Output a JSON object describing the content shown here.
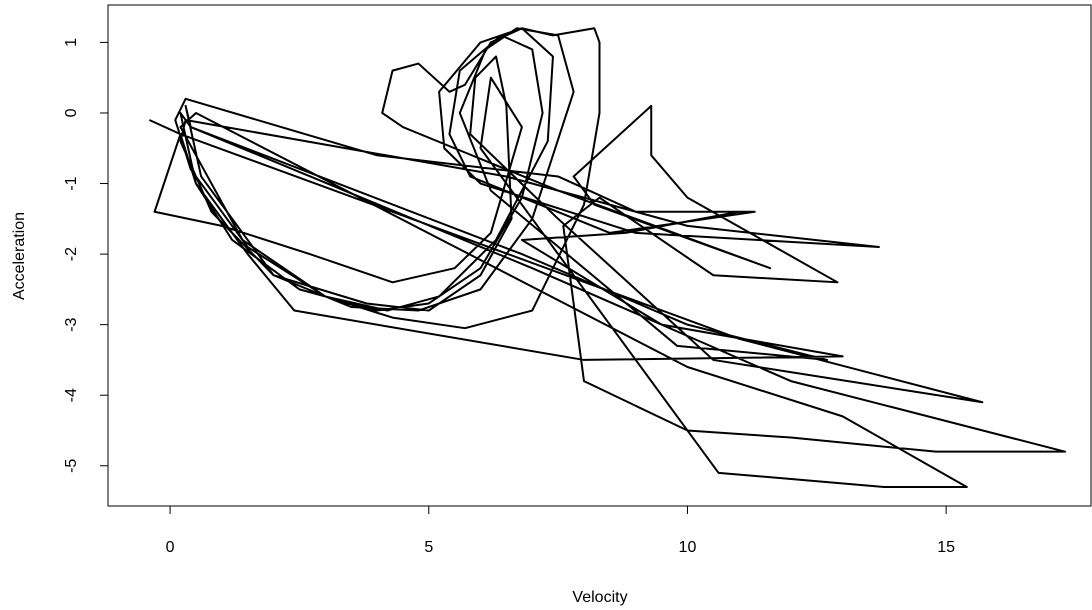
{
  "chart_data": {
    "type": "line",
    "x_label": "Velocity",
    "y_label": "Acceleration",
    "color": "#000000",
    "xlim": [
      -1.2,
      17.8
    ],
    "ylim": [
      -5.57,
      1.53
    ],
    "xticks": [
      0,
      5,
      10,
      15
    ],
    "yticks": [
      -5,
      -4,
      -3,
      -2,
      -1,
      0,
      1
    ],
    "x": [
      -0.4,
      0.2,
      0.5,
      1.2,
      2.5,
      4,
      5,
      6,
      6.8,
      7.2,
      7.0,
      6.4,
      5.6,
      5.4,
      5.8,
      8.5,
      11.3,
      9,
      7.5,
      4,
      0.3,
      0.1,
      0.4,
      1.5,
      3,
      4.2,
      5.2,
      6.3,
      7.3,
      7.4,
      6.8,
      6,
      5.2,
      5.3,
      6,
      9,
      13.7,
      10,
      6.5,
      0.3,
      0.2,
      0.8,
      2,
      3.5,
      4.8,
      6,
      7,
      7.8,
      7.5,
      6.7,
      6.1,
      5.6,
      6.2,
      9.8,
      12.7,
      10,
      6.8,
      0.4,
      0.3,
      0.6,
      2,
      3.8,
      5,
      6,
      6.6,
      6.5,
      6.3,
      5.9,
      5.8,
      7.5,
      10.5,
      15.7,
      11,
      0.2,
      -0.3,
      1,
      2.7,
      4.3,
      5.5,
      6.2,
      6.8,
      6.2,
      6,
      7.5,
      10.6,
      13.8,
      15.4,
      13,
      10,
      0.5,
      0.2,
      1.4,
      3,
      4.3,
      5.7,
      7,
      8,
      8.3,
      8.3,
      8.2,
      7.4,
      6.8,
      6.2,
      5.7,
      5.4,
      4.8,
      4.3,
      4.1,
      4.5,
      5.5,
      7.5,
      9,
      11.6,
      8.2,
      7.8,
      9.3,
      9.3,
      10,
      12.9,
      10.5,
      8.3,
      7.6,
      8,
      10,
      12,
      14.8,
      17.3,
      12,
      7,
      0.4,
      0.2,
      0.5,
      1.5,
      2.4,
      8,
      13,
      9.5,
      6.8,
      8.8,
      11
    ],
    "values": [
      -0.1,
      -0.3,
      -1.0,
      -1.8,
      -2.5,
      -2.8,
      -2.7,
      -2.2,
      -1.2,
      0,
      0.9,
      1.1,
      0.6,
      -0.3,
      -0.9,
      -1.7,
      -1.4,
      -1.4,
      -0.9,
      -0.6,
      0.2,
      -0.1,
      -0.8,
      -1.9,
      -2.6,
      -2.8,
      -2.6,
      -1.8,
      -0.4,
      0.8,
      1.2,
      1,
      0.3,
      -0.5,
      -1,
      -1.7,
      -1.9,
      -1.6,
      -0.9,
      -0.1,
      -0.4,
      -1.4,
      -2.3,
      -2.75,
      -2.8,
      -2.5,
      -1.5,
      0.3,
      1.1,
      1.2,
      0.9,
      0,
      -1.1,
      -3.3,
      -3.5,
      -3,
      -2,
      -0.2,
      0.1,
      -0.9,
      -2.3,
      -2.7,
      -2.8,
      -2.3,
      -1.5,
      0.1,
      0.8,
      0.5,
      -0.3,
      -1.5,
      -3.5,
      -4.1,
      -3.2,
      -0.3,
      -1.4,
      -1.6,
      -2,
      -2.4,
      -2.2,
      -1.7,
      -0.2,
      0.5,
      -0.5,
      -2,
      -5.1,
      -5.3,
      -5.3,
      -4.3,
      -3.6,
      0,
      -0.2,
      -1.8,
      -2.6,
      -2.9,
      -3.05,
      -2.8,
      -1.3,
      0,
      1.0,
      1.2,
      1.1,
      1.2,
      1.0,
      0.4,
      0.3,
      0.7,
      0.6,
      0,
      -0.2,
      -0.5,
      -1.1,
      -1.5,
      -2.2,
      -1.3,
      -0.9,
      0.1,
      -0.6,
      -1.2,
      -2.4,
      -2.3,
      -1.2,
      -1.6,
      -3.8,
      -4.5,
      -4.6,
      -4.8,
      -4.8,
      -3.8,
      -2.2,
      -0.2,
      0,
      -1,
      -2,
      -2.8,
      -3.5,
      -3.45,
      -3,
      -1.8,
      -1.7,
      -1.4
    ]
  }
}
